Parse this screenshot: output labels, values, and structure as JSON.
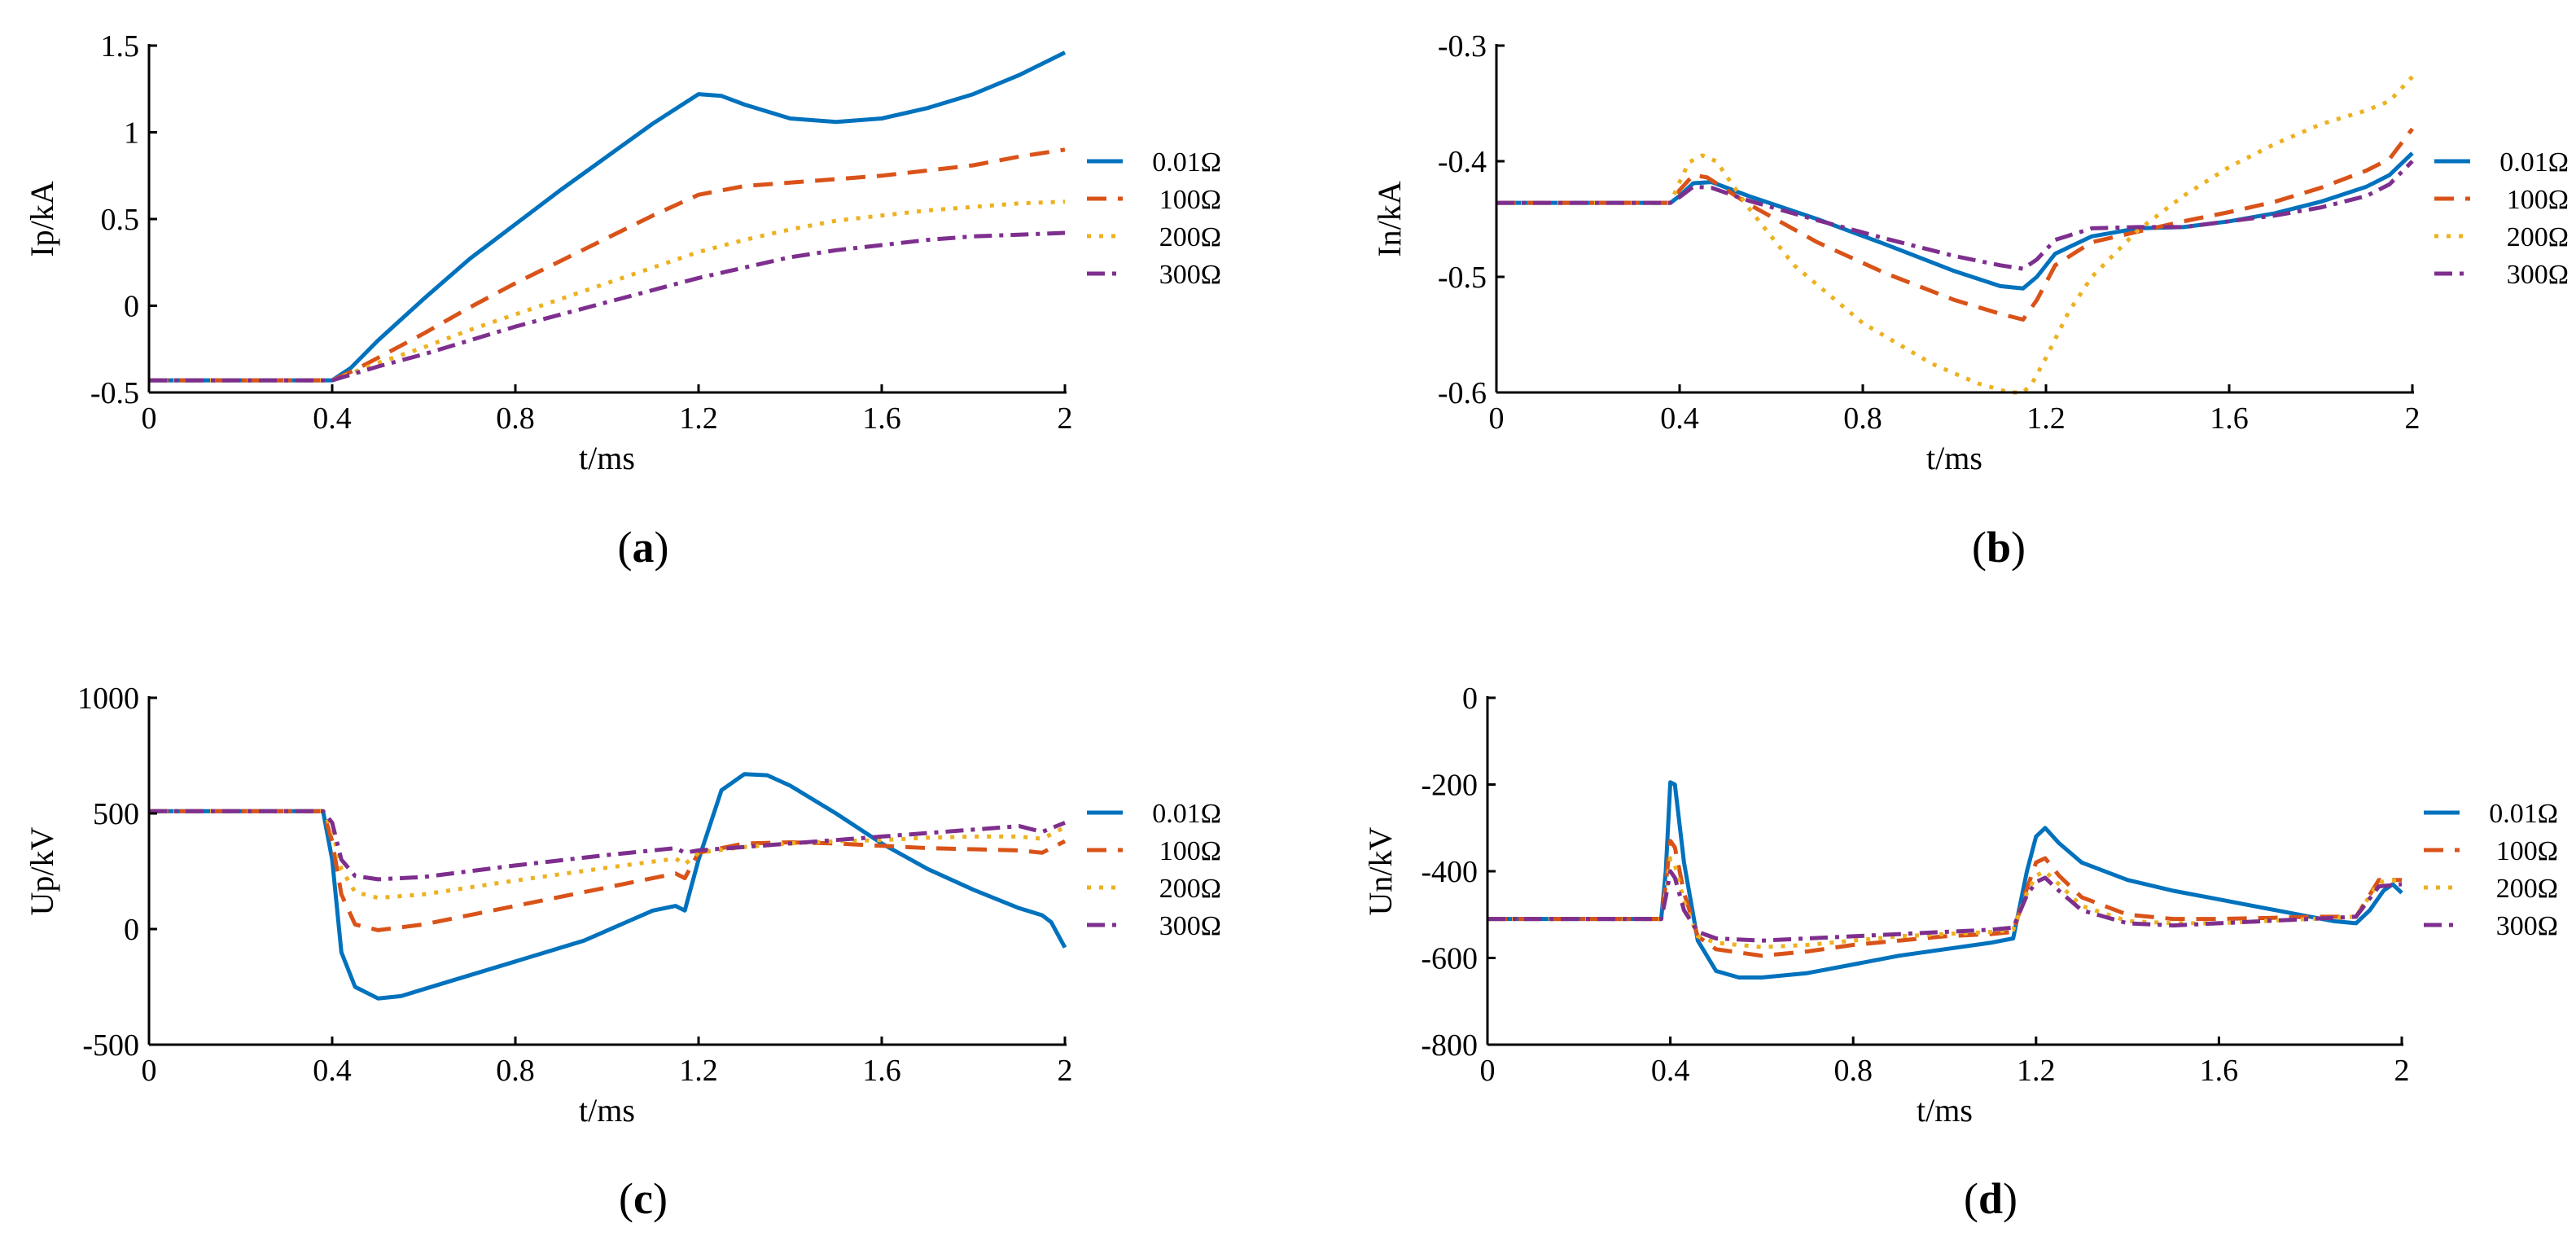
{
  "figure": {
    "background": "#ffffff"
  },
  "series_styles": [
    {
      "name": "0.01Ω",
      "color": "#0072BD",
      "dash": ""
    },
    {
      "name": "100Ω",
      "color": "#D95319",
      "dash": "24 14"
    },
    {
      "name": "200Ω",
      "color": "#EDB120",
      "dash": "5 10"
    },
    {
      "name": "300Ω",
      "color": "#7E2F8E",
      "dash": "22 9 5 9"
    }
  ],
  "chart_data": [
    {
      "id": "a",
      "panel_label": "a",
      "type": "line",
      "xlabel": "t/ms",
      "ylabel": "Ip/kA",
      "xlim": [
        0,
        2
      ],
      "ylim": [
        -0.5,
        1.5
      ],
      "xticks": [
        0,
        0.4,
        0.8,
        1.2,
        1.6,
        2
      ],
      "xtick_labels": [
        "0",
        "0.4",
        "0.8",
        "1.2",
        "1.6",
        "2"
      ],
      "yticks": [
        -0.5,
        0,
        0.5,
        1,
        1.5
      ],
      "ytick_labels": [
        "-0.5",
        "0",
        "0.5",
        "1",
        "1.5"
      ],
      "legend_placement": "outside-right",
      "series": [
        {
          "name": "0.01Ω",
          "x": [
            0,
            0.4,
            0.44,
            0.5,
            0.6,
            0.7,
            0.8,
            0.9,
            1.0,
            1.1,
            1.2,
            1.25,
            1.3,
            1.4,
            1.5,
            1.6,
            1.7,
            1.8,
            1.9,
            2.0
          ],
          "y": [
            -0.43,
            -0.43,
            -0.36,
            -0.2,
            0.04,
            0.27,
            0.47,
            0.67,
            0.86,
            1.05,
            1.22,
            1.21,
            1.16,
            1.08,
            1.06,
            1.08,
            1.14,
            1.22,
            1.33,
            1.46
          ]
        },
        {
          "name": "100Ω",
          "x": [
            0,
            0.4,
            0.45,
            0.5,
            0.6,
            0.7,
            0.8,
            0.9,
            1.0,
            1.1,
            1.2,
            1.3,
            1.4,
            1.5,
            1.6,
            1.7,
            1.8,
            1.9,
            2.0
          ],
          "y": [
            -0.43,
            -0.43,
            -0.37,
            -0.3,
            -0.16,
            -0.01,
            0.13,
            0.26,
            0.39,
            0.52,
            0.64,
            0.69,
            0.71,
            0.73,
            0.75,
            0.78,
            0.81,
            0.86,
            0.9
          ]
        },
        {
          "name": "200Ω",
          "x": [
            0,
            0.4,
            0.45,
            0.5,
            0.6,
            0.7,
            0.8,
            0.9,
            1.0,
            1.1,
            1.2,
            1.3,
            1.4,
            1.5,
            1.6,
            1.7,
            1.8,
            1.9,
            2.0
          ],
          "y": [
            -0.43,
            -0.43,
            -0.38,
            -0.33,
            -0.24,
            -0.14,
            -0.05,
            0.04,
            0.13,
            0.22,
            0.31,
            0.38,
            0.44,
            0.49,
            0.52,
            0.55,
            0.57,
            0.59,
            0.6
          ]
        },
        {
          "name": "300Ω",
          "x": [
            0,
            0.4,
            0.45,
            0.5,
            0.6,
            0.7,
            0.8,
            0.9,
            1.0,
            1.1,
            1.2,
            1.3,
            1.4,
            1.5,
            1.6,
            1.7,
            1.8,
            1.9,
            2.0
          ],
          "y": [
            -0.43,
            -0.43,
            -0.39,
            -0.35,
            -0.28,
            -0.2,
            -0.12,
            -0.05,
            0.02,
            0.09,
            0.16,
            0.22,
            0.28,
            0.32,
            0.35,
            0.38,
            0.4,
            0.41,
            0.42
          ]
        }
      ]
    },
    {
      "id": "b",
      "panel_label": "b",
      "type": "line",
      "xlabel": "t/ms",
      "ylabel": "In/kA",
      "xlim": [
        0,
        2
      ],
      "ylim": [
        -0.6,
        -0.3
      ],
      "xticks": [
        0,
        0.4,
        0.8,
        1.2,
        1.6,
        2
      ],
      "xtick_labels": [
        "0",
        "0.4",
        "0.8",
        "1.2",
        "1.6",
        "2"
      ],
      "yticks": [
        -0.6,
        -0.5,
        -0.4,
        -0.3
      ],
      "ytick_labels": [
        "-0.6",
        "-0.5",
        "-0.4",
        "-0.3"
      ],
      "legend_placement": "outside-right",
      "series": [
        {
          "name": "0.01Ω",
          "x": [
            0,
            0.38,
            0.4,
            0.43,
            0.47,
            0.55,
            0.7,
            0.85,
            1.0,
            1.1,
            1.15,
            1.18,
            1.22,
            1.3,
            1.4,
            1.5,
            1.6,
            1.7,
            1.8,
            1.9,
            1.95,
            2.0
          ],
          "y": [
            -0.436,
            -0.436,
            -0.43,
            -0.419,
            -0.418,
            -0.43,
            -0.45,
            -0.472,
            -0.495,
            -0.508,
            -0.51,
            -0.5,
            -0.48,
            -0.465,
            -0.458,
            -0.457,
            -0.452,
            -0.445,
            -0.435,
            -0.422,
            -0.412,
            -0.393
          ]
        },
        {
          "name": "100Ω",
          "x": [
            0,
            0.38,
            0.4,
            0.43,
            0.46,
            0.55,
            0.7,
            0.85,
            1.0,
            1.1,
            1.15,
            1.18,
            1.22,
            1.3,
            1.4,
            1.5,
            1.6,
            1.7,
            1.8,
            1.9,
            1.95,
            2.0
          ],
          "y": [
            -0.436,
            -0.436,
            -0.425,
            -0.412,
            -0.414,
            -0.437,
            -0.47,
            -0.497,
            -0.52,
            -0.532,
            -0.537,
            -0.52,
            -0.49,
            -0.47,
            -0.461,
            -0.452,
            -0.444,
            -0.435,
            -0.423,
            -0.408,
            -0.398,
            -0.372
          ]
        },
        {
          "name": "200Ω",
          "x": [
            0,
            0.38,
            0.4,
            0.42,
            0.45,
            0.48,
            0.55,
            0.65,
            0.8,
            0.95,
            1.05,
            1.12,
            1.15,
            1.17,
            1.2,
            1.25,
            1.3,
            1.4,
            1.5,
            1.6,
            1.7,
            1.8,
            1.9,
            1.95,
            2.0
          ],
          "y": [
            -0.436,
            -0.436,
            -0.418,
            -0.401,
            -0.395,
            -0.4,
            -0.44,
            -0.49,
            -0.54,
            -0.575,
            -0.592,
            -0.6,
            -0.6,
            -0.592,
            -0.57,
            -0.53,
            -0.5,
            -0.46,
            -0.43,
            -0.405,
            -0.385,
            -0.368,
            -0.356,
            -0.348,
            -0.327
          ]
        },
        {
          "name": "300Ω",
          "x": [
            0,
            0.38,
            0.4,
            0.43,
            0.47,
            0.55,
            0.7,
            0.85,
            1.0,
            1.1,
            1.15,
            1.18,
            1.22,
            1.3,
            1.4,
            1.5,
            1.6,
            1.7,
            1.8,
            1.9,
            1.95,
            2.0
          ],
          "y": [
            -0.436,
            -0.436,
            -0.431,
            -0.422,
            -0.423,
            -0.434,
            -0.451,
            -0.467,
            -0.482,
            -0.49,
            -0.493,
            -0.485,
            -0.468,
            -0.458,
            -0.457,
            -0.457,
            -0.452,
            -0.447,
            -0.44,
            -0.43,
            -0.42,
            -0.4
          ]
        }
      ]
    },
    {
      "id": "c",
      "panel_label": "c",
      "type": "line",
      "xlabel": "t/ms",
      "ylabel": "Up/kV",
      "xlim": [
        0,
        2
      ],
      "ylim": [
        -500,
        1000
      ],
      "xticks": [
        0,
        0.4,
        0.8,
        1.2,
        1.6,
        2
      ],
      "xtick_labels": [
        "0",
        "0.4",
        "0.8",
        "1.2",
        "1.6",
        "2"
      ],
      "yticks": [
        -500,
        0,
        500,
        1000
      ],
      "ytick_labels": [
        "-500",
        "0",
        "500",
        "1000"
      ],
      "legend_placement": "outside-right",
      "series": [
        {
          "name": "0.01Ω",
          "x": [
            0,
            0.38,
            0.4,
            0.42,
            0.45,
            0.5,
            0.55,
            0.65,
            0.8,
            0.95,
            1.1,
            1.15,
            1.17,
            1.2,
            1.25,
            1.3,
            1.35,
            1.4,
            1.5,
            1.6,
            1.7,
            1.8,
            1.9,
            1.95,
            1.97,
            2.0
          ],
          "y": [
            510,
            510,
            300,
            -100,
            -250,
            -300,
            -290,
            -230,
            -140,
            -50,
            80,
            100,
            80,
            300,
            600,
            670,
            665,
            620,
            500,
            370,
            260,
            170,
            90,
            60,
            30,
            -80
          ]
        },
        {
          "name": "100Ω",
          "x": [
            0,
            0.38,
            0.4,
            0.42,
            0.45,
            0.5,
            0.6,
            0.8,
            1.0,
            1.15,
            1.17,
            1.2,
            1.3,
            1.4,
            1.5,
            1.6,
            1.7,
            1.8,
            1.9,
            1.95,
            2.0
          ],
          "y": [
            510,
            510,
            380,
            150,
            20,
            -5,
            20,
            100,
            180,
            240,
            220,
            330,
            370,
            375,
            370,
            360,
            350,
            345,
            340,
            330,
            380
          ]
        },
        {
          "name": "200Ω",
          "x": [
            0,
            0.38,
            0.4,
            0.42,
            0.45,
            0.5,
            0.6,
            0.8,
            1.0,
            1.15,
            1.17,
            1.2,
            1.3,
            1.4,
            1.5,
            1.6,
            1.7,
            1.8,
            1.9,
            1.95,
            2.0
          ],
          "y": [
            510,
            510,
            430,
            260,
            160,
            135,
            150,
            210,
            265,
            305,
            280,
            330,
            355,
            370,
            380,
            385,
            395,
            400,
            400,
            390,
            440
          ]
        },
        {
          "name": "300Ω",
          "x": [
            0,
            0.38,
            0.4,
            0.42,
            0.45,
            0.5,
            0.6,
            0.8,
            1.0,
            1.15,
            1.17,
            1.2,
            1.3,
            1.4,
            1.5,
            1.6,
            1.7,
            1.8,
            1.9,
            1.95,
            2.0
          ],
          "y": [
            510,
            510,
            460,
            300,
            230,
            215,
            225,
            275,
            320,
            350,
            330,
            340,
            355,
            370,
            385,
            400,
            415,
            430,
            445,
            420,
            460
          ]
        }
      ]
    },
    {
      "id": "d",
      "panel_label": "d",
      "type": "line",
      "xlabel": "t/ms",
      "ylabel": "Un/kV",
      "xlim": [
        0,
        2
      ],
      "ylim": [
        -800,
        0
      ],
      "xticks": [
        0,
        0.4,
        0.8,
        1.2,
        1.6,
        2
      ],
      "xtick_labels": [
        "0",
        "0.4",
        "0.8",
        "1.2",
        "1.6",
        "2"
      ],
      "yticks": [
        -800,
        -600,
        -400,
        -200,
        0
      ],
      "ytick_labels": [
        "-800",
        "-600",
        "-400",
        "-200",
        "0"
      ],
      "legend_placement": "outside-right",
      "series": [
        {
          "name": "0.01Ω",
          "x": [
            0,
            0.38,
            0.39,
            0.4,
            0.41,
            0.43,
            0.46,
            0.5,
            0.55,
            0.6,
            0.7,
            0.8,
            0.9,
            1.0,
            1.1,
            1.15,
            1.18,
            1.2,
            1.22,
            1.25,
            1.3,
            1.4,
            1.5,
            1.6,
            1.7,
            1.8,
            1.85,
            1.9,
            1.93,
            1.96,
            1.98,
            2.0
          ],
          "y": [
            -510,
            -510,
            -400,
            -195,
            -200,
            -380,
            -560,
            -630,
            -645,
            -645,
            -635,
            -615,
            -595,
            -580,
            -565,
            -555,
            -400,
            -320,
            -300,
            -335,
            -380,
            -420,
            -445,
            -465,
            -485,
            -505,
            -515,
            -520,
            -490,
            -445,
            -430,
            -450
          ]
        },
        {
          "name": "100Ω",
          "x": [
            0,
            0.38,
            0.39,
            0.4,
            0.41,
            0.43,
            0.46,
            0.5,
            0.6,
            0.7,
            0.8,
            0.9,
            1.0,
            1.1,
            1.15,
            1.18,
            1.2,
            1.22,
            1.25,
            1.3,
            1.4,
            1.5,
            1.6,
            1.7,
            1.8,
            1.9,
            1.95,
            2.0
          ],
          "y": [
            -510,
            -510,
            -430,
            -330,
            -345,
            -450,
            -550,
            -580,
            -595,
            -585,
            -570,
            -560,
            -550,
            -545,
            -540,
            -440,
            -380,
            -370,
            -410,
            -460,
            -500,
            -510,
            -510,
            -508,
            -505,
            -505,
            -420,
            -420
          ]
        },
        {
          "name": "200Ω",
          "x": [
            0,
            0.38,
            0.39,
            0.4,
            0.41,
            0.43,
            0.46,
            0.5,
            0.6,
            0.7,
            0.8,
            0.9,
            1.0,
            1.1,
            1.15,
            1.18,
            1.2,
            1.22,
            1.25,
            1.3,
            1.4,
            1.5,
            1.6,
            1.7,
            1.8,
            1.9,
            1.95,
            2.0
          ],
          "y": [
            -510,
            -510,
            -450,
            -370,
            -385,
            -470,
            -550,
            -565,
            -575,
            -570,
            -560,
            -550,
            -545,
            -540,
            -535,
            -450,
            -410,
            -400,
            -430,
            -480,
            -515,
            -520,
            -520,
            -515,
            -510,
            -505,
            -425,
            -420
          ]
        },
        {
          "name": "300Ω",
          "x": [
            0,
            0.38,
            0.39,
            0.4,
            0.41,
            0.43,
            0.46,
            0.5,
            0.6,
            0.7,
            0.8,
            0.9,
            1.0,
            1.1,
            1.15,
            1.18,
            1.2,
            1.22,
            1.25,
            1.3,
            1.4,
            1.5,
            1.6,
            1.7,
            1.8,
            1.9,
            1.95,
            2.0
          ],
          "y": [
            -510,
            -510,
            -460,
            -400,
            -415,
            -490,
            -540,
            -555,
            -560,
            -555,
            -550,
            -545,
            -540,
            -535,
            -530,
            -455,
            -425,
            -415,
            -445,
            -490,
            -520,
            -525,
            -520,
            -515,
            -510,
            -505,
            -435,
            -430
          ]
        }
      ]
    }
  ]
}
